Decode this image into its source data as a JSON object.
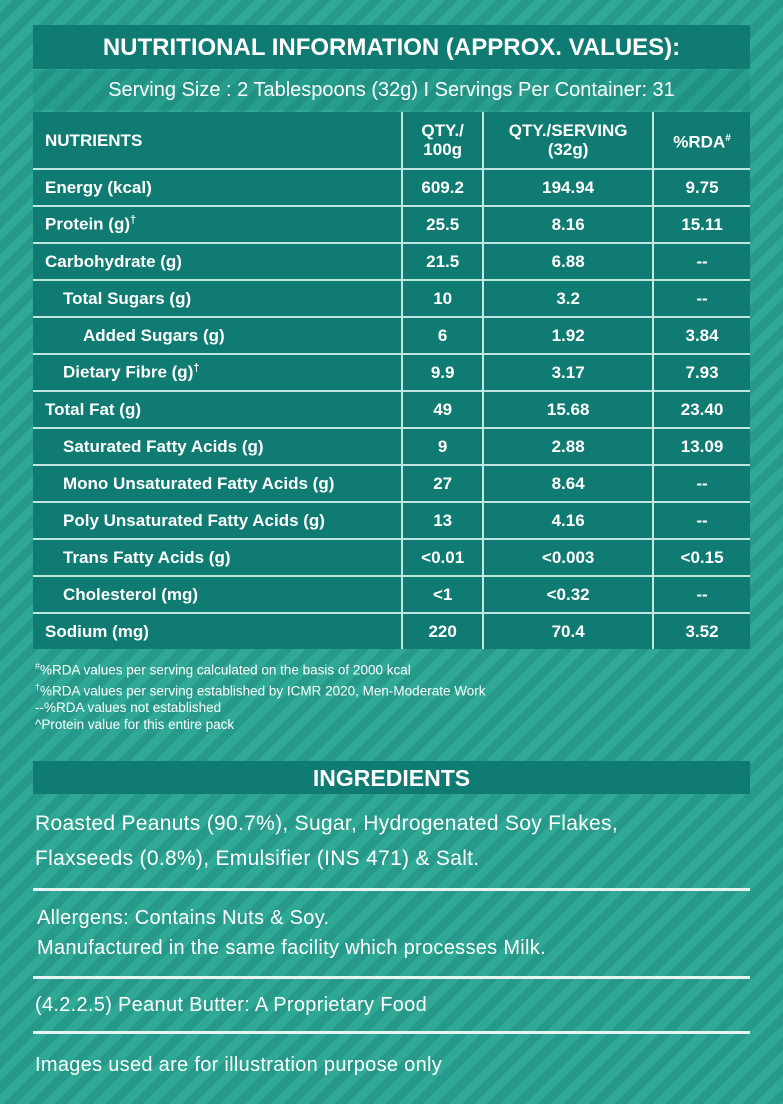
{
  "header": {
    "title": "NUTRITIONAL INFORMATION (APPROX. VALUES):",
    "serving": "Serving Size : 2 Tablespoons (32g) I Servings Per Container: 31"
  },
  "table": {
    "columns": [
      {
        "lines": [
          "NUTRIENTS"
        ]
      },
      {
        "lines": [
          "QTY./",
          "100g"
        ]
      },
      {
        "lines": [
          "QTY./SERVING",
          "(32g)"
        ]
      },
      {
        "lines": [
          "%RDA"
        ],
        "mark": "#"
      }
    ],
    "rows": [
      {
        "name": "Energy (kcal)",
        "cells": [
          "609.2",
          "194.94",
          "9.75"
        ]
      },
      {
        "name": "Protein (g)",
        "mark": "†",
        "cells": [
          "25.5",
          "8.16",
          "15.11"
        ]
      },
      {
        "name": "Carbohydrate (g)",
        "cells": [
          "21.5",
          "6.88",
          "--"
        ]
      },
      {
        "name": "Total Sugars (g)",
        "cells": [
          "10",
          "3.2",
          "--"
        ]
      },
      {
        "name": "Added Sugars (g)",
        "cells": [
          "6",
          "1.92",
          "3.84"
        ]
      },
      {
        "name": "Dietary Fibre (g)",
        "mark": "†",
        "cells": [
          "9.9",
          "3.17",
          "7.93"
        ]
      },
      {
        "name": "Total Fat (g)",
        "cells": [
          "49",
          "15.68",
          "23.40"
        ]
      },
      {
        "name": "Saturated Fatty Acids (g)",
        "cells": [
          "9",
          "2.88",
          "13.09"
        ]
      },
      {
        "name": "Mono Unsaturated Fatty Acids (g)",
        "cells": [
          "27",
          "8.64",
          "--"
        ]
      },
      {
        "name": "Poly Unsaturated Fatty Acids (g)",
        "cells": [
          "13",
          "4.16",
          "--"
        ]
      },
      {
        "name": "Trans Fatty Acids (g)",
        "cells": [
          "<0.01",
          "<0.003",
          "<0.15"
        ]
      },
      {
        "name": "Cholesterol (mg)",
        "cells": [
          "<1",
          "<0.32",
          "--"
        ]
      },
      {
        "name": "Sodium (mg)",
        "cells": [
          "220",
          "70.4",
          "3.52"
        ]
      }
    ]
  },
  "footnotes": [
    {
      "mark": "#",
      "text": "%RDA values per serving calculated on the basis of 2000 kcal"
    },
    {
      "mark": "†",
      "text": "%RDA values per serving established by ICMR 2020, Men-Moderate Work"
    },
    {
      "text": "--%RDA values not established"
    },
    {
      "text": "^Protein value for this entire pack"
    }
  ],
  "ingredients": {
    "title": "INGREDIENTS",
    "lines": [
      "Roasted Peanuts (90.7%), Sugar, Hydrogenated Soy Flakes,",
      "Flaxseeds (0.8%), Emulsifier (INS 471) & Salt."
    ]
  },
  "allergens": [
    "Allergens: Contains Nuts & Soy.",
    "Manufactured in the same facility which processes Milk."
  ],
  "category": "(4.2.2.5) Peanut Butter: A Proprietary Food",
  "disclaimer": "Images used are for illustration purpose only"
}
